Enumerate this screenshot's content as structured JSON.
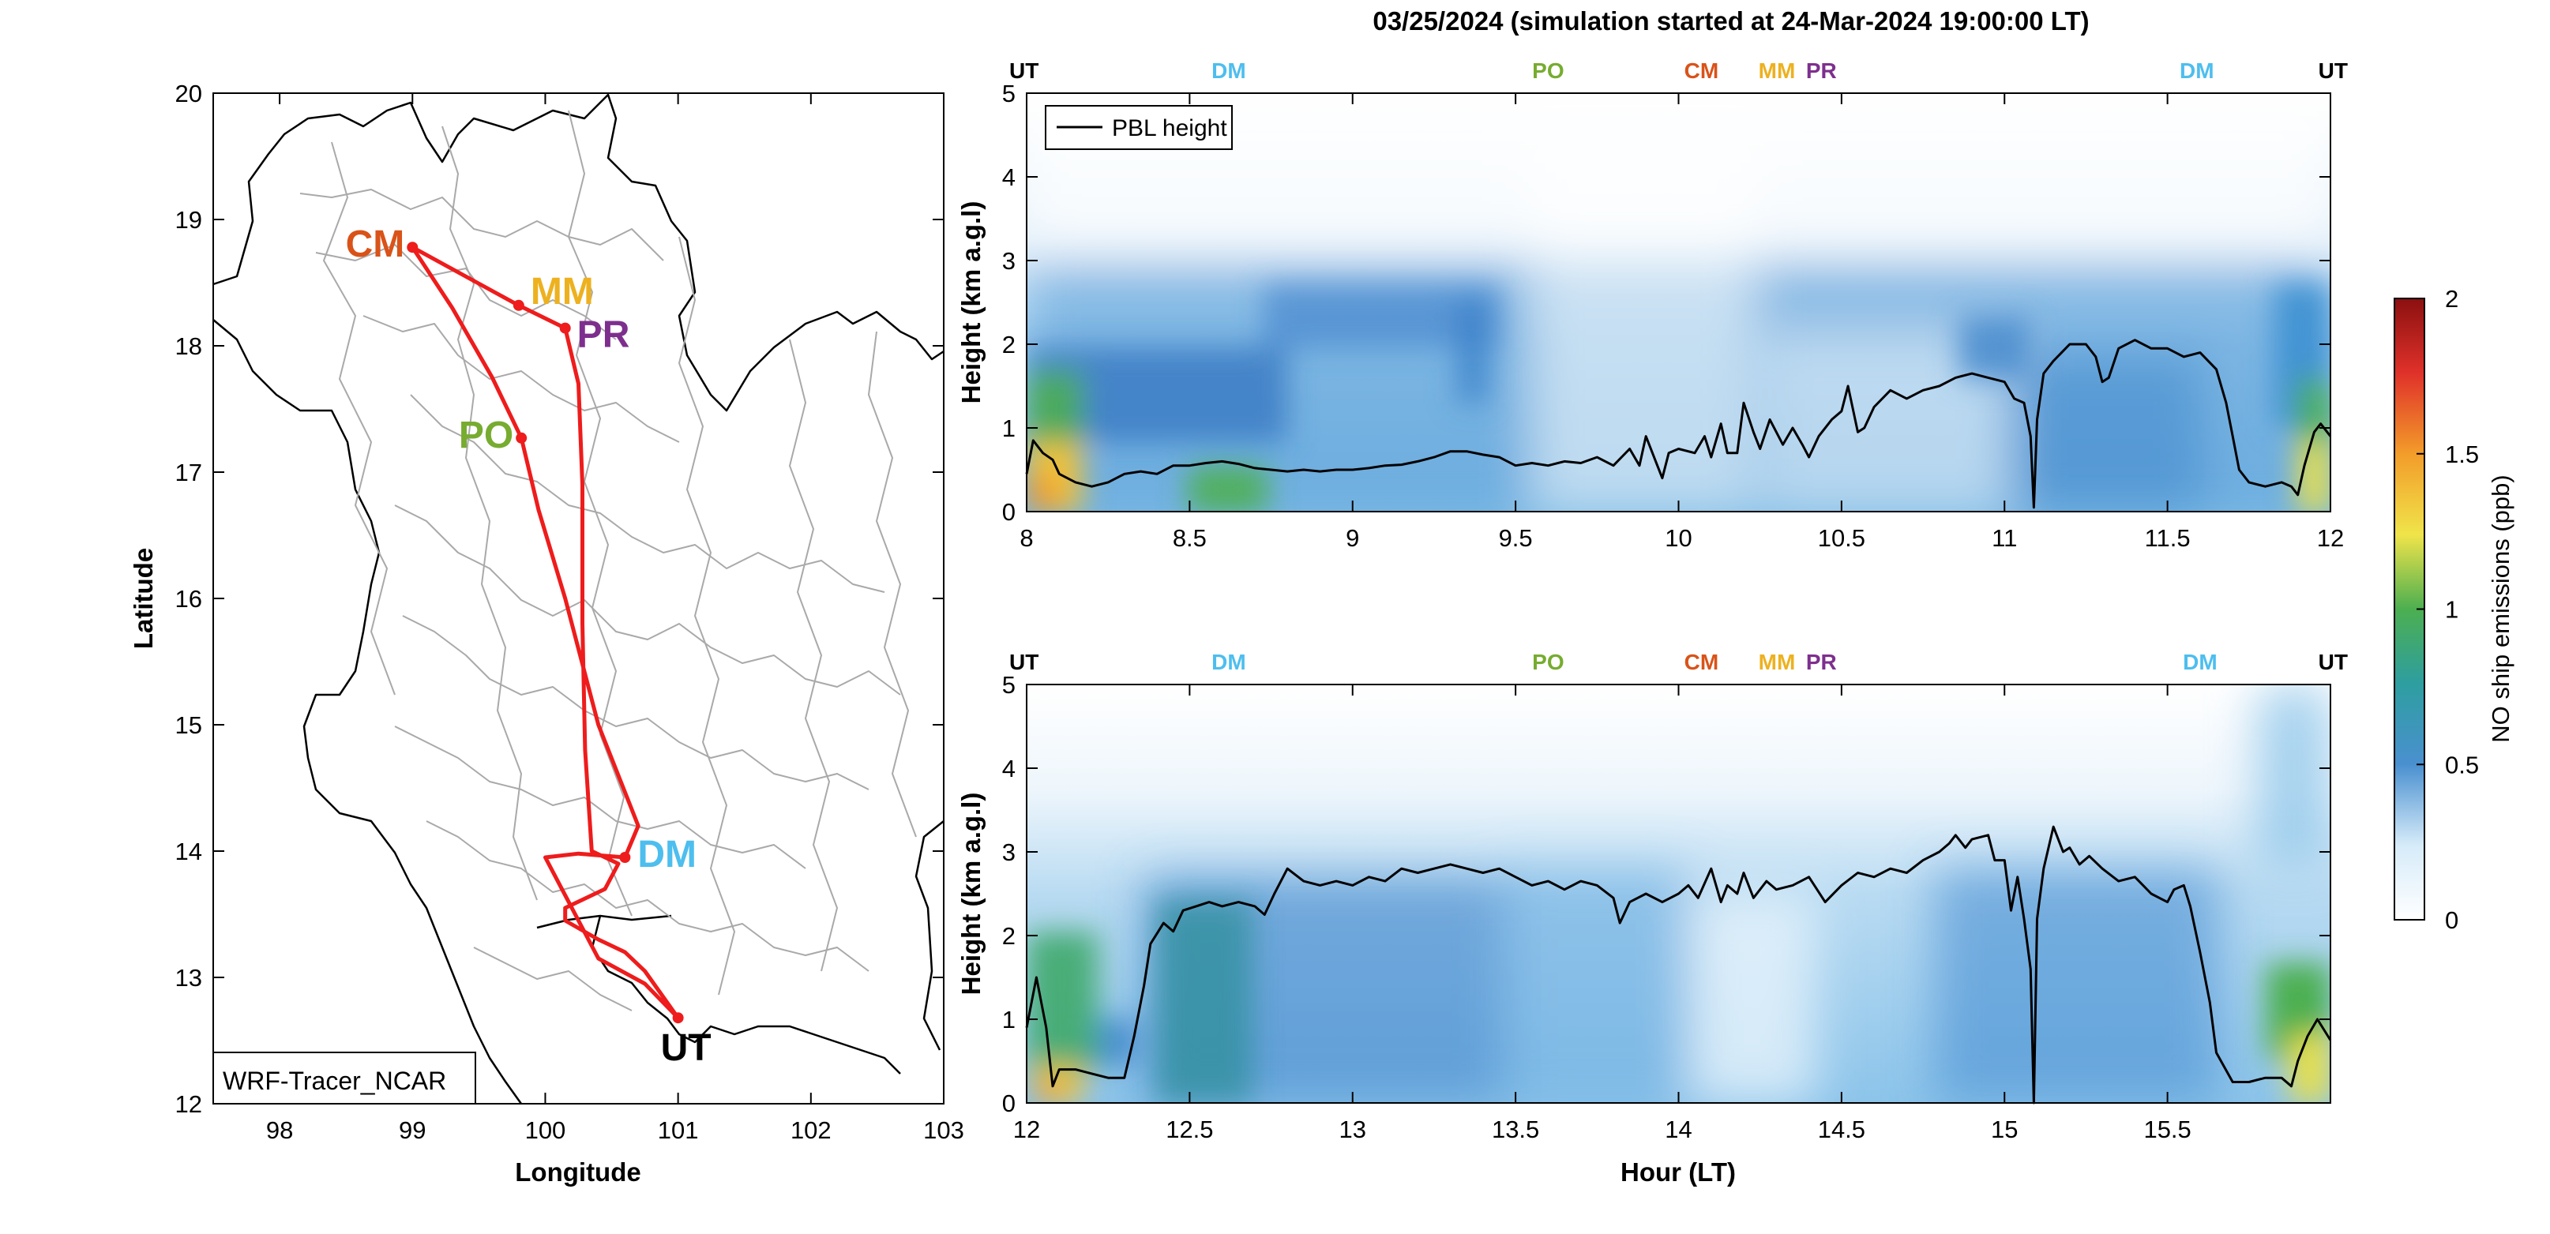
{
  "title": "03/25/2024 (simulation started at 24-Mar-2024 19:00:00 LT)",
  "colors": {
    "route": "#ee1c1c",
    "CM": "#d95319",
    "MM": "#edb120",
    "PR": "#7e2f8e",
    "PO": "#77ac30",
    "DM": "#4dbeee",
    "UT": "#000000",
    "pbl": "#000000"
  },
  "chart_data": [
    {
      "type": "map",
      "xlabel": "Longitude",
      "ylabel": "Latitude",
      "xlim": [
        97.5,
        103
      ],
      "ylim": [
        12,
        20
      ],
      "xticks": [
        "98",
        "99",
        "100",
        "101",
        "102",
        "103"
      ],
      "yticks": [
        "12",
        "13",
        "14",
        "15",
        "16",
        "17",
        "18",
        "19",
        "20"
      ],
      "legend": "WRF-Tracer_NCAR",
      "sites": [
        {
          "name": "CM",
          "lon": 99.0,
          "lat": 18.78
        },
        {
          "name": "MM",
          "lon": 99.8,
          "lat": 18.32
        },
        {
          "name": "PR",
          "lon": 100.15,
          "lat": 18.14
        },
        {
          "name": "PO",
          "lon": 99.82,
          "lat": 17.27
        },
        {
          "name": "DM",
          "lon": 100.6,
          "lat": 13.95
        },
        {
          "name": "UT",
          "lon": 101.0,
          "lat": 12.68
        }
      ],
      "route": [
        [
          101.0,
          12.68
        ],
        [
          100.75,
          12.95
        ],
        [
          100.4,
          13.15
        ],
        [
          100.2,
          13.55
        ],
        [
          100.0,
          13.95
        ],
        [
          100.25,
          13.98
        ],
        [
          100.6,
          13.95
        ],
        [
          100.7,
          14.2
        ],
        [
          100.4,
          15.0
        ],
        [
          100.15,
          16.0
        ],
        [
          99.95,
          16.7
        ],
        [
          99.82,
          17.27
        ],
        [
          99.6,
          17.75
        ],
        [
          99.3,
          18.3
        ],
        [
          99.0,
          18.78
        ],
        [
          99.8,
          18.32
        ],
        [
          100.15,
          18.14
        ],
        [
          100.25,
          17.7
        ],
        [
          100.28,
          16.9
        ],
        [
          100.28,
          15.8
        ],
        [
          100.3,
          14.8
        ],
        [
          100.35,
          14.0
        ],
        [
          100.55,
          13.9
        ],
        [
          100.45,
          13.7
        ],
        [
          100.15,
          13.55
        ],
        [
          100.15,
          13.45
        ],
        [
          100.4,
          13.3
        ],
        [
          100.6,
          13.2
        ],
        [
          100.75,
          13.05
        ],
        [
          101.0,
          12.68
        ]
      ]
    },
    {
      "type": "heatmap",
      "xlim": [
        8,
        12
      ],
      "ylim": [
        0,
        5
      ],
      "xticks": [
        "8",
        "8.5",
        "9",
        "9.5",
        "10",
        "10.5",
        "11",
        "11.5",
        "12"
      ],
      "yticks": [
        "0",
        "1",
        "2",
        "3",
        "4",
        "5"
      ],
      "ylabel": "Height (km a.g.l)",
      "legend": "PBL height",
      "site_labels": [
        {
          "name": "UT",
          "x": 8.0
        },
        {
          "name": "DM",
          "x": 8.62
        },
        {
          "name": "PO",
          "x": 9.6
        },
        {
          "name": "CM",
          "x": 10.07
        },
        {
          "name": "MM",
          "x": 10.3
        },
        {
          "name": "PR",
          "x": 10.42
        },
        {
          "name": "DM",
          "x": 11.59
        },
        {
          "name": "UT",
          "x": 12.0
        }
      ],
      "pbl_height": [
        [
          8.0,
          0.45
        ],
        [
          8.02,
          0.85
        ],
        [
          8.05,
          0.7
        ],
        [
          8.08,
          0.62
        ],
        [
          8.1,
          0.45
        ],
        [
          8.15,
          0.35
        ],
        [
          8.2,
          0.3
        ],
        [
          8.25,
          0.35
        ],
        [
          8.3,
          0.45
        ],
        [
          8.35,
          0.48
        ],
        [
          8.4,
          0.45
        ],
        [
          8.45,
          0.55
        ],
        [
          8.5,
          0.55
        ],
        [
          8.55,
          0.58
        ],
        [
          8.6,
          0.6
        ],
        [
          8.65,
          0.57
        ],
        [
          8.7,
          0.52
        ],
        [
          8.75,
          0.5
        ],
        [
          8.8,
          0.48
        ],
        [
          8.85,
          0.5
        ],
        [
          8.9,
          0.48
        ],
        [
          8.95,
          0.5
        ],
        [
          9.0,
          0.5
        ],
        [
          9.05,
          0.52
        ],
        [
          9.1,
          0.55
        ],
        [
          9.15,
          0.56
        ],
        [
          9.2,
          0.6
        ],
        [
          9.25,
          0.65
        ],
        [
          9.3,
          0.72
        ],
        [
          9.35,
          0.72
        ],
        [
          9.4,
          0.68
        ],
        [
          9.45,
          0.65
        ],
        [
          9.5,
          0.55
        ],
        [
          9.55,
          0.58
        ],
        [
          9.6,
          0.55
        ],
        [
          9.65,
          0.6
        ],
        [
          9.7,
          0.58
        ],
        [
          9.75,
          0.65
        ],
        [
          9.8,
          0.55
        ],
        [
          9.85,
          0.75
        ],
        [
          9.88,
          0.55
        ],
        [
          9.9,
          0.9
        ],
        [
          9.93,
          0.6
        ],
        [
          9.95,
          0.4
        ],
        [
          9.97,
          0.7
        ],
        [
          10.0,
          0.75
        ],
        [
          10.05,
          0.7
        ],
        [
          10.08,
          0.9
        ],
        [
          10.1,
          0.65
        ],
        [
          10.13,
          1.05
        ],
        [
          10.15,
          0.7
        ],
        [
          10.18,
          0.7
        ],
        [
          10.2,
          1.3
        ],
        [
          10.23,
          0.95
        ],
        [
          10.25,
          0.75
        ],
        [
          10.28,
          1.1
        ],
        [
          10.32,
          0.8
        ],
        [
          10.35,
          1.0
        ],
        [
          10.38,
          0.8
        ],
        [
          10.4,
          0.65
        ],
        [
          10.43,
          0.9
        ],
        [
          10.47,
          1.1
        ],
        [
          10.5,
          1.2
        ],
        [
          10.52,
          1.5
        ],
        [
          10.55,
          0.95
        ],
        [
          10.57,
          1.0
        ],
        [
          10.6,
          1.25
        ],
        [
          10.65,
          1.45
        ],
        [
          10.7,
          1.35
        ],
        [
          10.75,
          1.45
        ],
        [
          10.8,
          1.5
        ],
        [
          10.85,
          1.6
        ],
        [
          10.9,
          1.65
        ],
        [
          10.95,
          1.6
        ],
        [
          11.0,
          1.55
        ],
        [
          11.03,
          1.35
        ],
        [
          11.06,
          1.3
        ],
        [
          11.08,
          0.9
        ],
        [
          11.09,
          0.05
        ],
        [
          11.1,
          1.1
        ],
        [
          11.12,
          1.65
        ],
        [
          11.15,
          1.8
        ],
        [
          11.2,
          2.0
        ],
        [
          11.25,
          2.0
        ],
        [
          11.28,
          1.85
        ],
        [
          11.3,
          1.55
        ],
        [
          11.32,
          1.6
        ],
        [
          11.35,
          1.95
        ],
        [
          11.4,
          2.05
        ],
        [
          11.45,
          1.95
        ],
        [
          11.5,
          1.95
        ],
        [
          11.55,
          1.85
        ],
        [
          11.6,
          1.9
        ],
        [
          11.65,
          1.7
        ],
        [
          11.68,
          1.3
        ],
        [
          11.7,
          0.9
        ],
        [
          11.72,
          0.5
        ],
        [
          11.75,
          0.35
        ],
        [
          11.8,
          0.3
        ],
        [
          11.85,
          0.35
        ],
        [
          11.88,
          0.3
        ],
        [
          11.9,
          0.2
        ],
        [
          11.92,
          0.55
        ],
        [
          11.95,
          0.95
        ],
        [
          11.97,
          1.05
        ],
        [
          12.0,
          0.9
        ]
      ]
    },
    {
      "type": "heatmap",
      "xlim": [
        12,
        16
      ],
      "ylim": [
        0,
        5
      ],
      "xticks": [
        "12",
        "12.5",
        "13",
        "13.5",
        "14",
        "14.5",
        "15",
        "15.5"
      ],
      "yticks": [
        "0",
        "1",
        "2",
        "3",
        "4",
        "5"
      ],
      "xlabel": "Hour (LT)",
      "ylabel": "Height (km a.g.l)",
      "site_labels": [
        {
          "name": "UT",
          "x": 12.0
        },
        {
          "name": "DM",
          "x": 12.62
        },
        {
          "name": "PO",
          "x": 13.6
        },
        {
          "name": "CM",
          "x": 14.07
        },
        {
          "name": "MM",
          "x": 14.3
        },
        {
          "name": "PR",
          "x": 14.42
        },
        {
          "name": "DM",
          "x": 15.6
        },
        {
          "name": "UT",
          "x": 16.0
        }
      ],
      "pbl_height": [
        [
          12.0,
          0.9
        ],
        [
          12.03,
          1.5
        ],
        [
          12.06,
          0.9
        ],
        [
          12.08,
          0.2
        ],
        [
          12.1,
          0.4
        ],
        [
          12.15,
          0.4
        ],
        [
          12.2,
          0.35
        ],
        [
          12.25,
          0.3
        ],
        [
          12.3,
          0.3
        ],
        [
          12.33,
          0.8
        ],
        [
          12.36,
          1.4
        ],
        [
          12.38,
          1.9
        ],
        [
          12.42,
          2.15
        ],
        [
          12.45,
          2.05
        ],
        [
          12.48,
          2.3
        ],
        [
          12.52,
          2.35
        ],
        [
          12.56,
          2.4
        ],
        [
          12.6,
          2.35
        ],
        [
          12.65,
          2.4
        ],
        [
          12.7,
          2.35
        ],
        [
          12.73,
          2.25
        ],
        [
          12.76,
          2.5
        ],
        [
          12.8,
          2.8
        ],
        [
          12.85,
          2.65
        ],
        [
          12.9,
          2.6
        ],
        [
          12.95,
          2.65
        ],
        [
          13.0,
          2.6
        ],
        [
          13.05,
          2.7
        ],
        [
          13.1,
          2.65
        ],
        [
          13.15,
          2.8
        ],
        [
          13.2,
          2.75
        ],
        [
          13.25,
          2.8
        ],
        [
          13.3,
          2.85
        ],
        [
          13.35,
          2.8
        ],
        [
          13.4,
          2.75
        ],
        [
          13.45,
          2.8
        ],
        [
          13.5,
          2.7
        ],
        [
          13.55,
          2.6
        ],
        [
          13.6,
          2.65
        ],
        [
          13.65,
          2.55
        ],
        [
          13.7,
          2.65
        ],
        [
          13.75,
          2.6
        ],
        [
          13.8,
          2.45
        ],
        [
          13.82,
          2.15
        ],
        [
          13.85,
          2.4
        ],
        [
          13.9,
          2.5
        ],
        [
          13.95,
          2.4
        ],
        [
          14.0,
          2.5
        ],
        [
          14.03,
          2.6
        ],
        [
          14.06,
          2.45
        ],
        [
          14.1,
          2.8
        ],
        [
          14.13,
          2.4
        ],
        [
          14.15,
          2.6
        ],
        [
          14.18,
          2.5
        ],
        [
          14.2,
          2.75
        ],
        [
          14.23,
          2.45
        ],
        [
          14.27,
          2.65
        ],
        [
          14.3,
          2.55
        ],
        [
          14.35,
          2.6
        ],
        [
          14.4,
          2.7
        ],
        [
          14.45,
          2.4
        ],
        [
          14.5,
          2.6
        ],
        [
          14.55,
          2.75
        ],
        [
          14.6,
          2.7
        ],
        [
          14.65,
          2.8
        ],
        [
          14.7,
          2.75
        ],
        [
          14.75,
          2.9
        ],
        [
          14.8,
          3.0
        ],
        [
          14.83,
          3.1
        ],
        [
          14.85,
          3.2
        ],
        [
          14.88,
          3.05
        ],
        [
          14.9,
          3.15
        ],
        [
          14.95,
          3.2
        ],
        [
          14.97,
          2.9
        ],
        [
          15.0,
          2.9
        ],
        [
          15.02,
          2.3
        ],
        [
          15.04,
          2.7
        ],
        [
          15.06,
          2.2
        ],
        [
          15.08,
          1.6
        ],
        [
          15.09,
          0.0
        ],
        [
          15.1,
          2.2
        ],
        [
          15.12,
          2.8
        ],
        [
          15.15,
          3.3
        ],
        [
          15.18,
          3.0
        ],
        [
          15.2,
          3.05
        ],
        [
          15.23,
          2.85
        ],
        [
          15.26,
          2.95
        ],
        [
          15.3,
          2.8
        ],
        [
          15.35,
          2.65
        ],
        [
          15.4,
          2.7
        ],
        [
          15.45,
          2.5
        ],
        [
          15.5,
          2.4
        ],
        [
          15.52,
          2.55
        ],
        [
          15.55,
          2.6
        ],
        [
          15.57,
          2.35
        ],
        [
          15.6,
          1.8
        ],
        [
          15.63,
          1.2
        ],
        [
          15.65,
          0.6
        ],
        [
          15.7,
          0.25
        ],
        [
          15.75,
          0.25
        ],
        [
          15.8,
          0.3
        ],
        [
          15.85,
          0.3
        ],
        [
          15.88,
          0.2
        ],
        [
          15.9,
          0.5
        ],
        [
          15.93,
          0.8
        ],
        [
          15.96,
          1.0
        ],
        [
          16.0,
          0.75
        ]
      ]
    }
  ],
  "colorbar": {
    "label": "NO ship emissions (ppb)",
    "ticks": [
      "0",
      "0.5",
      "1",
      "1.5",
      "2"
    ],
    "range": [
      0,
      2
    ]
  }
}
